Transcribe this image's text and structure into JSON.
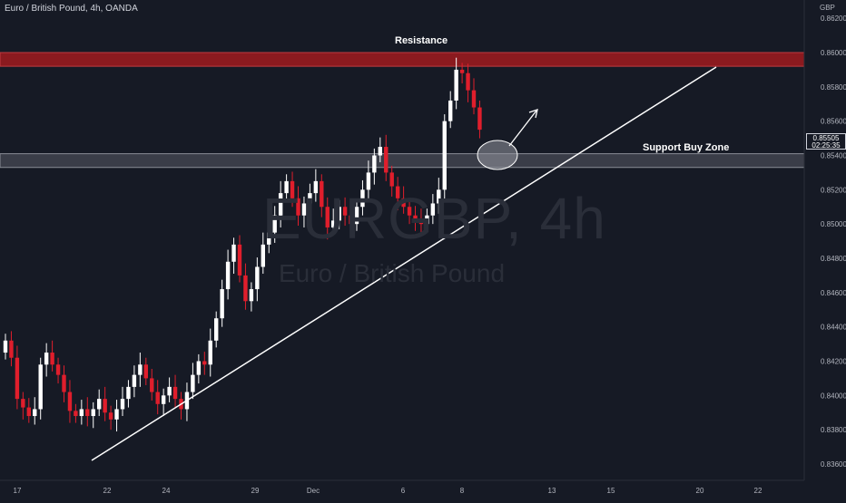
{
  "header": {
    "title": "Euro / British Pound, 4h, OANDA",
    "currency": "GBP"
  },
  "watermark": {
    "symbol": "EURGBP, 4h",
    "name": "Euro / British Pound"
  },
  "price_tag": {
    "price": "0.85505",
    "countdown": "02:25:35"
  },
  "annotations": {
    "resistance": "Resistance",
    "support": "Support Buy Zone"
  },
  "colors": {
    "background": "#161a25",
    "up_candle": "#ffffff",
    "down_candle": "#e01e2c",
    "resistance_zone": "#8b1a1f",
    "support_zone": "#3a3d48",
    "text": "#d1d4dc"
  },
  "chart_data": {
    "type": "candlestick",
    "title": "Euro / British Pound, 4h, OANDA",
    "ylim": [
      0.8355,
      0.863
    ],
    "y_ticks": [
      "0.86200",
      "0.86000",
      "0.85800",
      "0.85600",
      "0.85400",
      "0.85200",
      "0.85000",
      "0.84800",
      "0.84600",
      "0.84400",
      "0.84200",
      "0.84000",
      "0.83800",
      "0.83600"
    ],
    "x_ticks": [
      "17",
      "22",
      "24",
      "29",
      "Dec",
      "6",
      "8",
      "13",
      "15",
      "20",
      "22"
    ],
    "resistance_zone": [
      0.8592,
      0.86
    ],
    "support_zone": [
      0.8533,
      0.8541
    ],
    "trendline": {
      "start": [
        0,
        0.8363
      ],
      "end": [
        111.5,
        0.8591
      ]
    },
    "candles_close": [
      0.8432,
      0.8422,
      0.8398,
      0.8393,
      0.8388,
      0.8392,
      0.8418,
      0.8425,
      0.8418,
      0.8412,
      0.8402,
      0.8391,
      0.8388,
      0.8392,
      0.8388,
      0.8392,
      0.8398,
      0.839,
      0.8386,
      0.8392,
      0.8398,
      0.8405,
      0.8412,
      0.8418,
      0.841,
      0.8402,
      0.8395,
      0.84,
      0.8405,
      0.8398,
      0.8392,
      0.8402,
      0.8412,
      0.842,
      0.8418,
      0.8432,
      0.8445,
      0.8462,
      0.8478,
      0.8488,
      0.847,
      0.8455,
      0.8462,
      0.8475,
      0.8488,
      0.8495,
      0.8505,
      0.8518,
      0.8525,
      0.8515,
      0.8505,
      0.8512,
      0.8518,
      0.8525,
      0.851,
      0.8498,
      0.8502,
      0.851,
      0.8505,
      0.85,
      0.851,
      0.852,
      0.853,
      0.854,
      0.8545,
      0.853,
      0.8522,
      0.8515,
      0.851,
      0.8505,
      0.8502,
      0.85,
      0.8505,
      0.8512,
      0.852,
      0.856,
      0.8572,
      0.859,
      0.8588,
      0.8578,
      0.8568,
      0.8555
    ],
    "series": [
      {
        "name": "EURGBP 4h",
        "values_note": "approximate OHLC closes per bar"
      }
    ]
  }
}
